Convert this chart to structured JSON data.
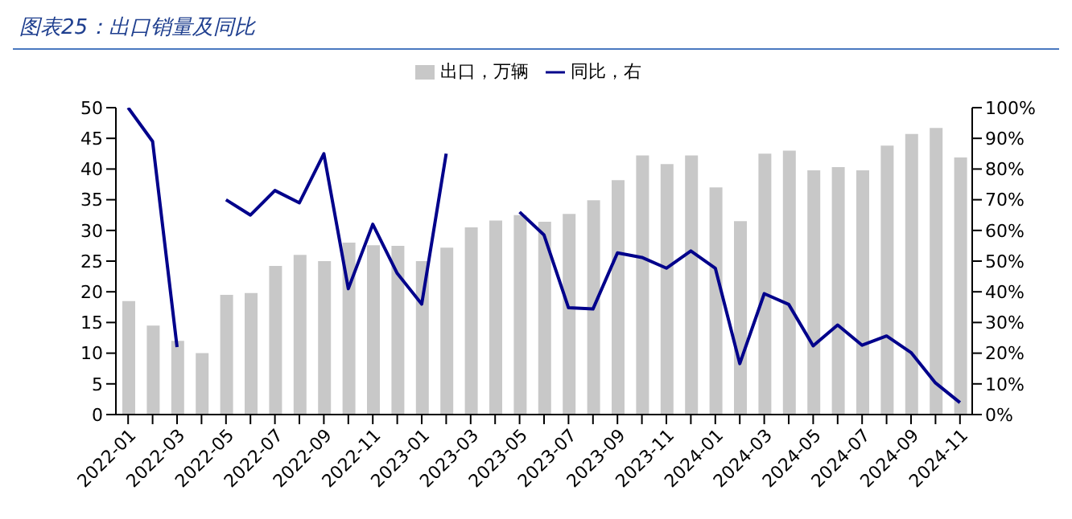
{
  "chart_data": {
    "type": "bar",
    "title": "图表25：出口销量及同比",
    "categories": [
      "2022-01",
      null,
      "2022-03",
      null,
      "2022-05",
      null,
      "2022-07",
      null,
      "2022-09",
      null,
      "2022-11",
      null,
      "2023-01",
      null,
      "2023-03",
      null,
      "2023-05",
      null,
      "2023-07",
      null,
      "2023-09",
      null,
      "2023-11",
      null,
      "2024-01",
      null,
      "2024-03",
      null,
      "2024-05",
      null,
      "2024-07",
      null,
      "2024-09",
      null,
      "2024-11"
    ],
    "series": [
      {
        "name": "出口，万辆",
        "color": "#c8c8c8",
        "values": [
          18.5,
          14.5,
          12,
          10,
          19.5,
          19.8,
          24.2,
          26,
          25,
          28,
          27.6,
          27.5,
          25,
          27.2,
          30.5,
          31.6,
          32.5,
          31.4,
          32.7,
          34.9,
          38.2,
          42.2,
          40.8,
          42.2,
          37,
          31.5,
          42.5,
          43,
          39.8,
          40.3,
          39.8,
          43.8,
          45.7,
          46.7,
          41.9
        ]
      },
      {
        "name": "同比，右",
        "type": "line",
        "axis": "y2",
        "color": "#00008b",
        "values": [
          100,
          89,
          22,
          null,
          70,
          65,
          73,
          69,
          85,
          41,
          62,
          46,
          36,
          85,
          null,
          null,
          66,
          58.5,
          34.8,
          34.4,
          52.7,
          51.2,
          47.7,
          53.3,
          47.7,
          16.6,
          39.4,
          35.9,
          22.4,
          29.2,
          22.6,
          25.6,
          20.2,
          10.3,
          3.9
        ]
      }
    ],
    "ylim": [
      0,
      50
    ],
    "yticks": [
      0,
      5,
      10,
      15,
      20,
      25,
      30,
      35,
      40,
      45,
      50
    ],
    "y2lim": [
      0,
      100
    ],
    "y2ticks": [
      {
        "value": 0,
        "label": "0%"
      },
      {
        "value": 10,
        "label": "10%"
      },
      {
        "value": 20,
        "label": "20%"
      },
      {
        "value": 30,
        "label": "30%"
      },
      {
        "value": 40,
        "label": "40%"
      },
      {
        "value": 50,
        "label": "50%"
      },
      {
        "value": 60,
        "label": "60%"
      },
      {
        "value": 70,
        "label": "70%"
      },
      {
        "value": 80,
        "label": "80%"
      },
      {
        "value": 90,
        "label": "90%"
      },
      {
        "value": 100,
        "label": "100%"
      }
    ],
    "legend": "top",
    "grid": false,
    "marker": "none"
  }
}
